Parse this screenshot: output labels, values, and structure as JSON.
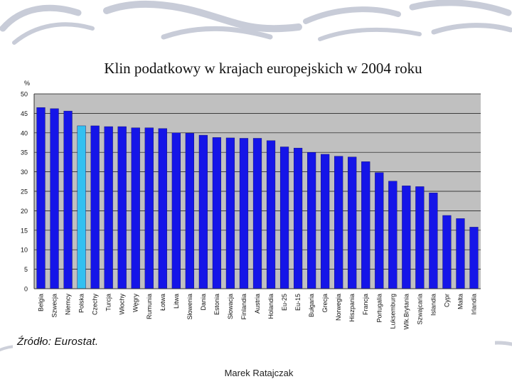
{
  "slide": {
    "title": "Klin podatkowy w krajach europejskich w 2004 roku",
    "source": "Źródło: Eurostat.",
    "footer": "Marek Ratajczak"
  },
  "colors": {
    "bar": "#1515e8",
    "highlight": "#33c0f0",
    "plot_bg": "#c0c0c0",
    "grid": "#111111"
  },
  "chart_data": {
    "type": "bar",
    "title": "",
    "xlabel": "",
    "ylabel": "%",
    "ylim": [
      0,
      50
    ],
    "yticks": [
      0,
      5,
      10,
      15,
      20,
      25,
      30,
      35,
      40,
      45,
      50
    ],
    "grid": true,
    "highlight": "Polska",
    "categories": [
      "Belgia",
      "Szwecja",
      "Niemcy",
      "Polska",
      "Czechy",
      "Turcja",
      "Włochy",
      "Węgry",
      "Rumunia",
      "Łotwa",
      "Litwa",
      "Słowenia",
      "Dania",
      "Estonia",
      "Słowacja",
      "Finlandia",
      "Austria",
      "Holandia",
      "Eu-25",
      "Eu-15",
      "Bułgaria",
      "Grecja",
      "Norwegia",
      "Hiszpania",
      "Francja",
      "Portugalia",
      "Luksemburg",
      "Wlk.Brytania",
      "Szwajcaria",
      "Islandia",
      "Cypr",
      "Malta",
      "Irlandia"
    ],
    "values": [
      46.5,
      46.2,
      45.6,
      41.8,
      41.8,
      41.6,
      41.6,
      41.3,
      41.3,
      41.1,
      40.0,
      39.9,
      39.4,
      38.8,
      38.7,
      38.6,
      38.6,
      38.0,
      36.4,
      36.1,
      35.0,
      34.5,
      34.0,
      33.8,
      32.6,
      29.8,
      27.6,
      26.4,
      26.2,
      24.6,
      18.8,
      18.0,
      15.8
    ]
  }
}
